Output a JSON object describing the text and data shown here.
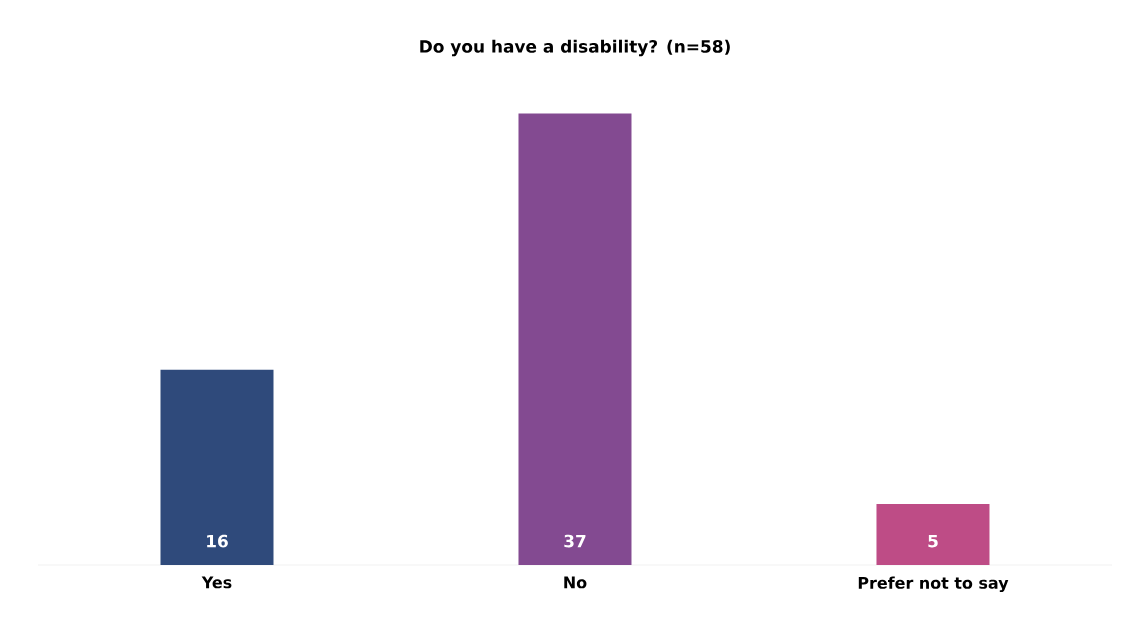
{
  "chart_data": {
    "type": "bar",
    "title": "Do you have a disability? (n=58)",
    "categories": [
      "Yes",
      "No",
      "Prefer not to say"
    ],
    "values": [
      16,
      37,
      5
    ],
    "colors": [
      "#2f4a7b",
      "#834a91",
      "#be4c86"
    ],
    "data_labels": true
  }
}
